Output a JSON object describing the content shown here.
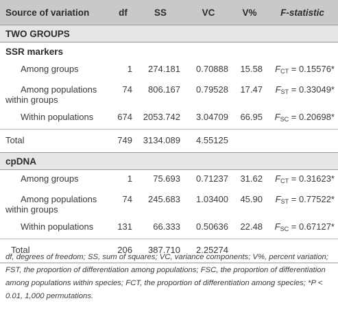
{
  "header": {
    "source": "Source of variation",
    "df": "df",
    "ss": "SS",
    "vc": "VC",
    "vpct": "V%",
    "fstat": "F-statistic"
  },
  "sections": [
    {
      "title": "TWO GROUPS",
      "subtitle": "SSR markers",
      "rows": [
        {
          "source": "Among groups",
          "source2": "",
          "df": "1",
          "ss": "274.181",
          "vc": "0.70888",
          "vpct": "15.58",
          "f_sym": "F",
          "f_sub": "CT",
          "f_val": " = 0.15576*"
        },
        {
          "source": "Among populations",
          "source2": "within groups",
          "df": "74",
          "ss": "806.167",
          "vc": "0.79528",
          "vpct": "17.47",
          "f_sym": "F",
          "f_sub": "ST",
          "f_val": " = 0.33049*"
        },
        {
          "source": "Within populations",
          "source2": "",
          "df": "674",
          "ss": "2053.742",
          "vc": "3.04709",
          "vpct": "66.95",
          "f_sym": "F",
          "f_sub": "SC",
          "f_val": " = 0.20698*"
        }
      ],
      "total": {
        "label": "Total",
        "df": "749",
        "ss": "3134.089",
        "vc": "4.55125"
      }
    },
    {
      "title": "cpDNA",
      "rows": [
        {
          "source": "Among groups",
          "source2": "",
          "df": "1",
          "ss": "75.693",
          "vc": "0.71237",
          "vpct": "31.62",
          "f_sym": "F",
          "f_sub": "CT",
          "f_val": " = 0.31623*"
        },
        {
          "source": "Among populations",
          "source2": "within groups",
          "df": "74",
          "ss": "245.683",
          "vc": "1.03400",
          "vpct": "45.90",
          "f_sym": "F",
          "f_sub": "ST",
          "f_val": " = 0.77522*"
        },
        {
          "source": "Within populations",
          "source2": "",
          "df": "131",
          "ss": "66.333",
          "vc": "0.50636",
          "vpct": "22.48",
          "f_sym": "F",
          "f_sub": "SC",
          "f_val": " = 0.67127*"
        }
      ],
      "total": {
        "label": "Total",
        "df": "206",
        "ss": "387.710",
        "vc": "2.25274"
      }
    }
  ],
  "footnote": "df, degrees of freedom; SS, sum of squares; VC, variance components; V%, percent variation; FST, the proportion of differentiation among populations; FSC, the proportion of differentiation among populations within species; FCT, the proportion of differentiation among species; *P < 0.01, 1,000 permutations."
}
